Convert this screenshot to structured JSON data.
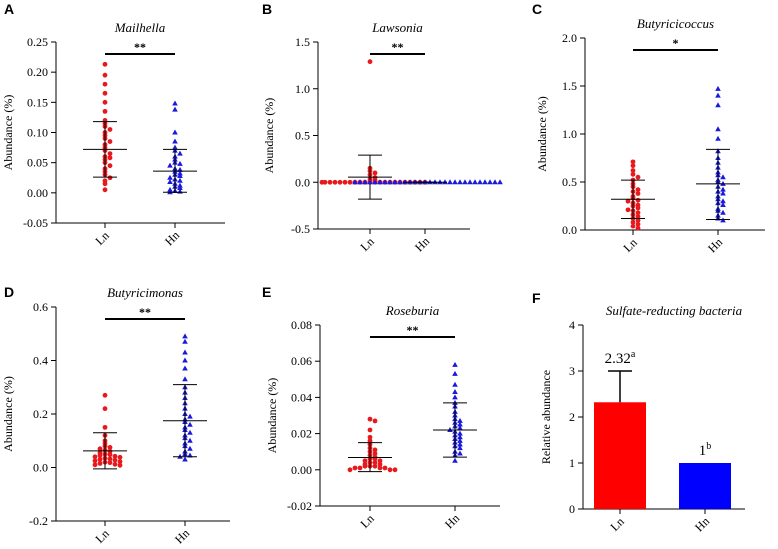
{
  "chart_data": [
    {
      "panel": "A",
      "type": "scatter",
      "title": "Mailhella",
      "ylabel": "Abundance (%)",
      "categories": [
        "Ln",
        "Hn"
      ],
      "ylim": [
        -0.05,
        0.25
      ],
      "yticks": [
        "-0.05",
        "0.00",
        "0.05",
        "0.10",
        "0.15",
        "0.20",
        "0.25"
      ],
      "significance": "**",
      "series": [
        {
          "category": "Ln",
          "color": "#e8191c",
          "marker": "circle",
          "mean": 0.072,
          "sd_upper": 0.118,
          "sd_lower": 0.026,
          "values": [
            0.213,
            0.195,
            0.18,
            0.165,
            0.15,
            0.135,
            0.12,
            0.115,
            0.11,
            0.105,
            0.1,
            0.095,
            0.09,
            0.085,
            0.08,
            0.075,
            0.07,
            0.065,
            0.06,
            0.058,
            0.055,
            0.05,
            0.045,
            0.04,
            0.035,
            0.03,
            0.025,
            0.02,
            0.015,
            0.005
          ]
        },
        {
          "category": "Hn",
          "color": "#1a1adb",
          "marker": "triangle",
          "mean": 0.036,
          "sd_upper": 0.072,
          "sd_lower": 0.001,
          "values": [
            0.148,
            0.138,
            0.1,
            0.085,
            0.075,
            0.07,
            0.065,
            0.06,
            0.055,
            0.05,
            0.048,
            0.045,
            0.04,
            0.038,
            0.035,
            0.032,
            0.03,
            0.028,
            0.025,
            0.022,
            0.02,
            0.018,
            0.015,
            0.012,
            0.01,
            0.008,
            0.005,
            0.003,
            0.002,
            0.001
          ]
        }
      ]
    },
    {
      "panel": "B",
      "type": "scatter",
      "title": "Lawsonia",
      "ylabel": "Abundance (%)",
      "categories": [
        "Ln",
        "Hn"
      ],
      "ylim": [
        -0.5,
        1.5
      ],
      "yticks": [
        "-0.5",
        "0.0",
        "0.5",
        "1.0",
        "1.5"
      ],
      "significance": "**",
      "series": [
        {
          "category": "Ln",
          "color": "#e8191c",
          "marker": "circle",
          "mean": 0.055,
          "sd_upper": 0.29,
          "sd_lower": -0.18,
          "values": [
            1.29,
            0.15,
            0.12,
            0.1,
            0.08,
            0.05,
            0.03,
            0.02,
            0,
            0,
            0,
            0,
            0,
            0,
            0,
            0,
            0,
            0,
            0,
            0,
            0,
            0,
            0,
            0,
            0,
            0,
            0,
            0,
            0,
            0
          ]
        },
        {
          "category": "Hn",
          "color": "#1a1adb",
          "marker": "triangle",
          "mean": 0.0,
          "sd_upper": 0.0,
          "sd_lower": 0.0,
          "values": [
            0,
            0,
            0,
            0,
            0,
            0,
            0,
            0,
            0,
            0,
            0,
            0,
            0,
            0,
            0,
            0,
            0,
            0,
            0,
            0,
            0,
            0,
            0,
            0,
            0,
            0,
            0,
            0,
            0,
            0
          ]
        }
      ]
    },
    {
      "panel": "C",
      "type": "scatter",
      "title": "Butyricicoccus",
      "ylabel": "Abundance (%)",
      "categories": [
        "Ln",
        "Hn"
      ],
      "ylim": [
        0,
        2.0
      ],
      "yticks": [
        "0.0",
        "0.5",
        "1.0",
        "1.5",
        "2.0"
      ],
      "significance": "*",
      "series": [
        {
          "category": "Ln",
          "color": "#e8191c",
          "marker": "circle",
          "mean": 0.32,
          "sd_upper": 0.52,
          "sd_lower": 0.12,
          "values": [
            0.71,
            0.67,
            0.62,
            0.58,
            0.55,
            0.52,
            0.48,
            0.45,
            0.42,
            0.4,
            0.38,
            0.35,
            0.33,
            0.31,
            0.3,
            0.28,
            0.26,
            0.25,
            0.23,
            0.21,
            0.2,
            0.18,
            0.16,
            0.14,
            0.12,
            0.1,
            0.08,
            0.06,
            0.04,
            0.02
          ]
        },
        {
          "category": "Hn",
          "color": "#1a1adb",
          "marker": "triangle",
          "mean": 0.48,
          "sd_upper": 0.84,
          "sd_lower": 0.11,
          "values": [
            1.47,
            1.4,
            1.3,
            1.05,
            0.95,
            0.82,
            0.75,
            0.7,
            0.65,
            0.6,
            0.57,
            0.55,
            0.52,
            0.5,
            0.48,
            0.45,
            0.42,
            0.4,
            0.38,
            0.35,
            0.32,
            0.3,
            0.28,
            0.26,
            0.22,
            0.2,
            0.18,
            0.15,
            0.12,
            0.1
          ]
        }
      ]
    },
    {
      "panel": "D",
      "type": "scatter",
      "title": "Butyricimonas",
      "ylabel": "Abundance (%)",
      "categories": [
        "Ln",
        "Hn"
      ],
      "ylim": [
        -0.2,
        0.6
      ],
      "yticks": [
        "-0.2",
        "0.0",
        "0.2",
        "0.4",
        "0.6"
      ],
      "significance": "**",
      "series": [
        {
          "category": "Ln",
          "color": "#e8191c",
          "marker": "circle",
          "mean": 0.062,
          "sd_upper": 0.13,
          "sd_lower": -0.005,
          "values": [
            0.27,
            0.22,
            0.15,
            0.12,
            0.1,
            0.09,
            0.08,
            0.075,
            0.07,
            0.065,
            0.06,
            0.055,
            0.05,
            0.048,
            0.045,
            0.042,
            0.04,
            0.038,
            0.035,
            0.032,
            0.03,
            0.028,
            0.025,
            0.022,
            0.02,
            0.018,
            0.015,
            0.012,
            0.01,
            0.008
          ]
        },
        {
          "category": "Hn",
          "color": "#1a1adb",
          "marker": "triangle",
          "mean": 0.175,
          "sd_upper": 0.31,
          "sd_lower": 0.04,
          "values": [
            0.49,
            0.47,
            0.43,
            0.4,
            0.37,
            0.33,
            0.3,
            0.28,
            0.26,
            0.24,
            0.22,
            0.2,
            0.19,
            0.18,
            0.17,
            0.16,
            0.15,
            0.14,
            0.13,
            0.12,
            0.11,
            0.1,
            0.09,
            0.08,
            0.07,
            0.06,
            0.05,
            0.045,
            0.04,
            0.03
          ]
        }
      ]
    },
    {
      "panel": "E",
      "type": "scatter",
      "title": "Roseburia",
      "ylabel": "Abundance (%)",
      "categories": [
        "Ln",
        "Hn"
      ],
      "ylim": [
        -0.02,
        0.08
      ],
      "yticks": [
        "-0.02",
        "0.00",
        "0.02",
        "0.04",
        "0.06",
        "0.08"
      ],
      "significance": "**",
      "series": [
        {
          "category": "Ln",
          "color": "#e8191c",
          "marker": "circle",
          "mean": 0.0068,
          "sd_upper": 0.015,
          "sd_lower": -0.001,
          "values": [
            0.028,
            0.027,
            0.022,
            0.018,
            0.016,
            0.014,
            0.012,
            0.011,
            0.01,
            0.009,
            0.008,
            0.007,
            0.006,
            0.006,
            0.005,
            0.005,
            0.004,
            0.004,
            0.003,
            0.003,
            0.002,
            0.002,
            0.002,
            0.001,
            0.001,
            0.001,
            0.001,
            0.0,
            0.0,
            0.0
          ]
        },
        {
          "category": "Hn",
          "color": "#1a1adb",
          "marker": "triangle",
          "mean": 0.022,
          "sd_upper": 0.037,
          "sd_lower": 0.007,
          "values": [
            0.058,
            0.053,
            0.047,
            0.043,
            0.04,
            0.037,
            0.035,
            0.032,
            0.03,
            0.028,
            0.027,
            0.026,
            0.025,
            0.024,
            0.023,
            0.022,
            0.021,
            0.02,
            0.019,
            0.018,
            0.017,
            0.016,
            0.015,
            0.014,
            0.013,
            0.012,
            0.01,
            0.009,
            0.008,
            0.005
          ]
        }
      ]
    },
    {
      "panel": "F",
      "type": "bar",
      "title": "Sulfate-reducting bacteria",
      "ylabel": "Relative abundance",
      "categories": [
        "Ln",
        "Hn"
      ],
      "ylim": [
        0,
        4
      ],
      "yticks": [
        "0",
        "1",
        "2",
        "3",
        "4"
      ],
      "values": [
        2.32,
        1
      ],
      "errors": [
        0.68,
        0
      ],
      "colors": [
        "#ff0000",
        "#0000ff"
      ],
      "bar_labels": [
        {
          "value": "2.32",
          "superscript": "a"
        },
        {
          "value": "1",
          "superscript": "b"
        }
      ]
    }
  ]
}
